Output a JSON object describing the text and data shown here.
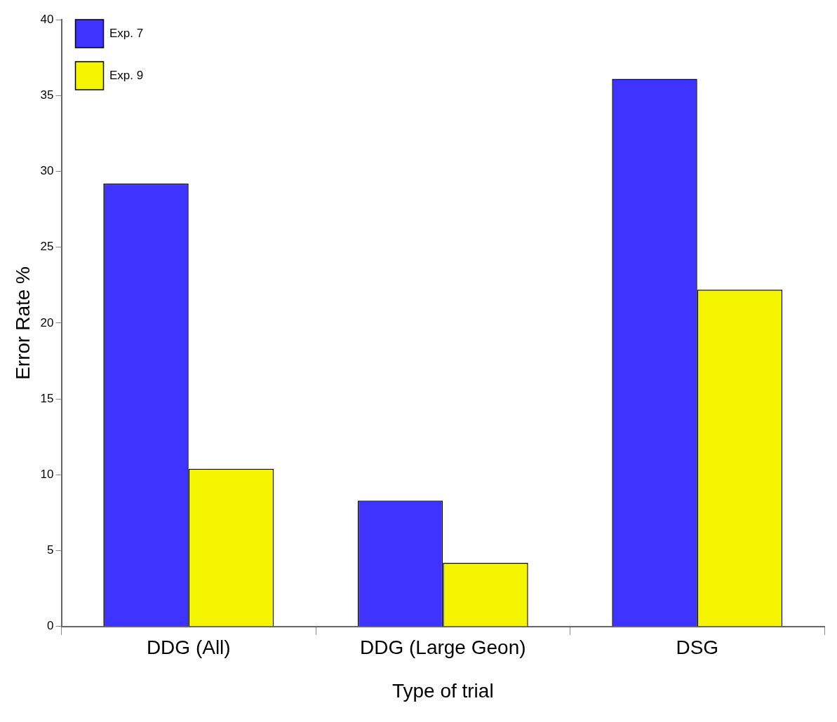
{
  "chart_data": {
    "type": "bar",
    "xlabel": "Type of trial",
    "ylabel": "Error Rate %",
    "categories": [
      "DDG (All)",
      "DDG (Large Geon)",
      "DSG"
    ],
    "series": [
      {
        "name": "Exp. 7",
        "color": "#3e33ff",
        "values": [
          29.2,
          8.3,
          36.1
        ]
      },
      {
        "name": "Exp. 9",
        "color": "#f5f500",
        "values": [
          10.4,
          4.2,
          22.2
        ]
      }
    ],
    "ylim": [
      0,
      40
    ],
    "yticks": [
      0,
      5,
      10,
      15,
      20,
      25,
      30,
      35,
      40
    ],
    "grid": false,
    "legend": "top left"
  }
}
